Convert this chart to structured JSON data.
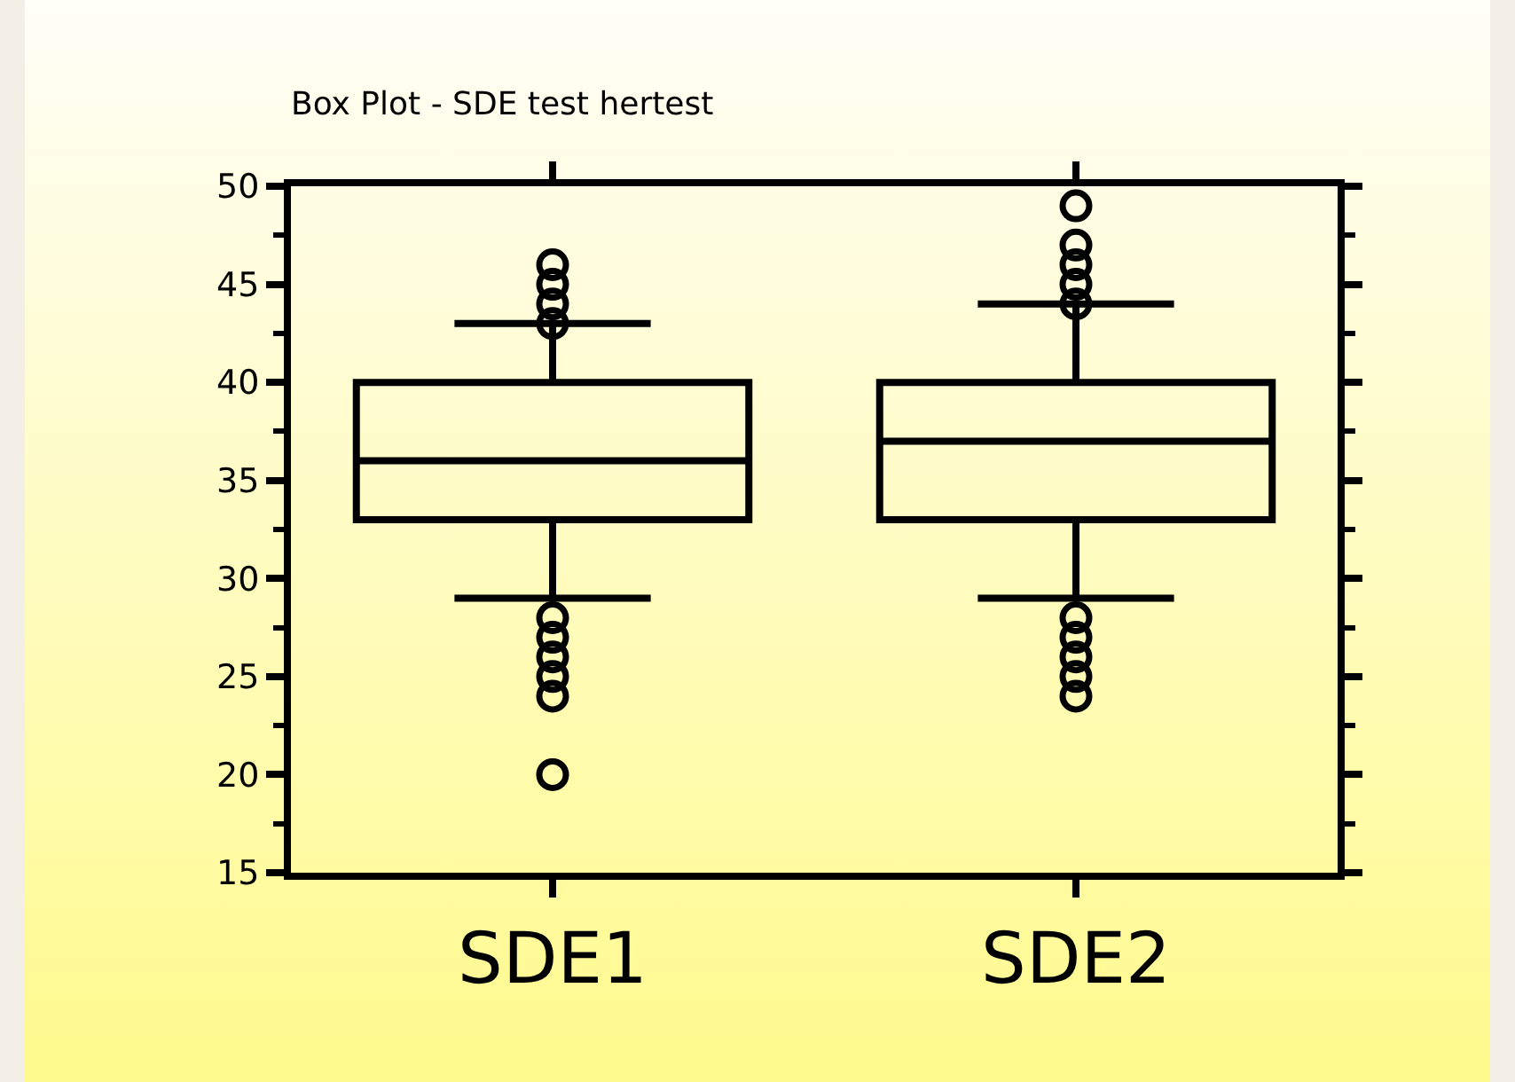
{
  "chart_data": {
    "type": "box",
    "title": "Box Plot - SDE test hertest",
    "categories": [
      "SDE1",
      "SDE2"
    ],
    "boxes": [
      {
        "low": 29,
        "q1": 33,
        "median": 36,
        "q3": 40,
        "high": 43,
        "outliers": [
          46,
          45,
          44,
          43,
          28,
          27,
          26,
          25,
          24,
          20
        ]
      },
      {
        "low": 29,
        "q1": 33,
        "median": 37,
        "q3": 40,
        "high": 44,
        "outliers": [
          49,
          47,
          46,
          45,
          44,
          28,
          27,
          26,
          25,
          24
        ]
      }
    ],
    "color": "#000000",
    "ylim": [
      15,
      50
    ],
    "yticks": [
      15,
      20,
      25,
      30,
      35,
      40,
      45,
      50
    ],
    "grid": false,
    "marker": "circle"
  }
}
